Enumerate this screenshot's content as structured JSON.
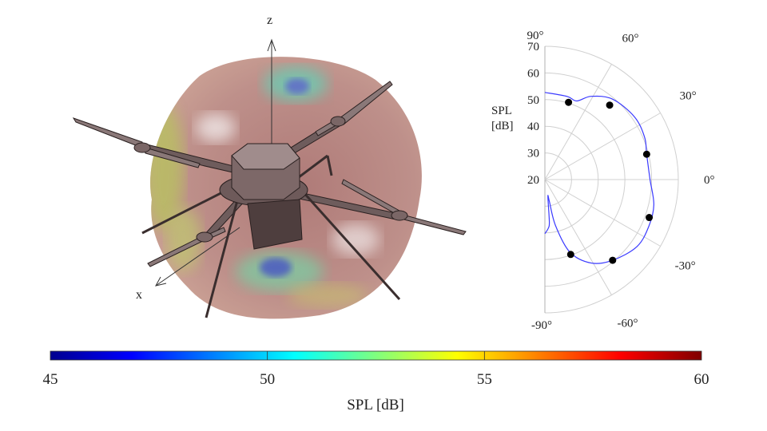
{
  "figure": {
    "axis_labels": {
      "z": "z",
      "x": "x"
    }
  },
  "chart_data": [
    {
      "type": "polar",
      "ylabel_line1": "SPL",
      "ylabel_line2": "[dB]",
      "radial_range": [
        20,
        70
      ],
      "radial_ticks": [
        "20",
        "30",
        "40",
        "50",
        "60",
        "70"
      ],
      "radial_tick_values": [
        20,
        30,
        40,
        50,
        60,
        70
      ],
      "angular_ticks": [
        {
          "angle": 90,
          "label": "90°"
        },
        {
          "angle": 60,
          "label": "60°"
        },
        {
          "angle": 30,
          "label": "30°"
        },
        {
          "angle": 0,
          "label": "0°"
        },
        {
          "angle": -30,
          "label": "-30°"
        },
        {
          "angle": -60,
          "label": "-60°"
        },
        {
          "angle": -90,
          "label": "-90°"
        }
      ],
      "grid": true,
      "series": [
        {
          "kind": "line",
          "color": "#3a3aff",
          "points": [
            [
              90,
              52.7
            ],
            [
              75,
              52.3
            ],
            [
              68,
              51.8
            ],
            [
              61,
              55.7
            ],
            [
              50,
              59.4
            ],
            [
              35,
              61
            ],
            [
              23,
              60.6
            ],
            [
              14,
              59.3
            ],
            [
              0,
              59.4
            ],
            [
              -13,
              61.9
            ],
            [
              -24,
              62.7
            ],
            [
              -36,
              62.7
            ],
            [
              -50,
              59.5
            ],
            [
              -61,
              55.8
            ],
            [
              -71,
              48.8
            ],
            [
              -77,
              37.7
            ],
            [
              -78.4,
              28.4
            ],
            [
              -80,
              26.5
            ],
            [
              -84,
              36
            ],
            [
              -86,
              38.3
            ],
            [
              -90,
              40.3
            ]
          ]
        },
        {
          "kind": "scatter",
          "color": "#000000",
          "points": [
            [
              73,
              50.3
            ],
            [
              49,
              57
            ],
            [
              14,
              59.3
            ],
            [
              -20,
              61.6
            ],
            [
              -50,
              59.5
            ],
            [
              -71,
              49.7
            ]
          ]
        }
      ]
    },
    {
      "type": "colorbar",
      "colormap": "jet",
      "range": [
        45,
        60
      ],
      "ticks": [
        "45",
        "50",
        "55",
        "60"
      ],
      "tick_values": [
        45,
        50,
        55,
        60
      ],
      "label": "SPL [dB]"
    }
  ]
}
